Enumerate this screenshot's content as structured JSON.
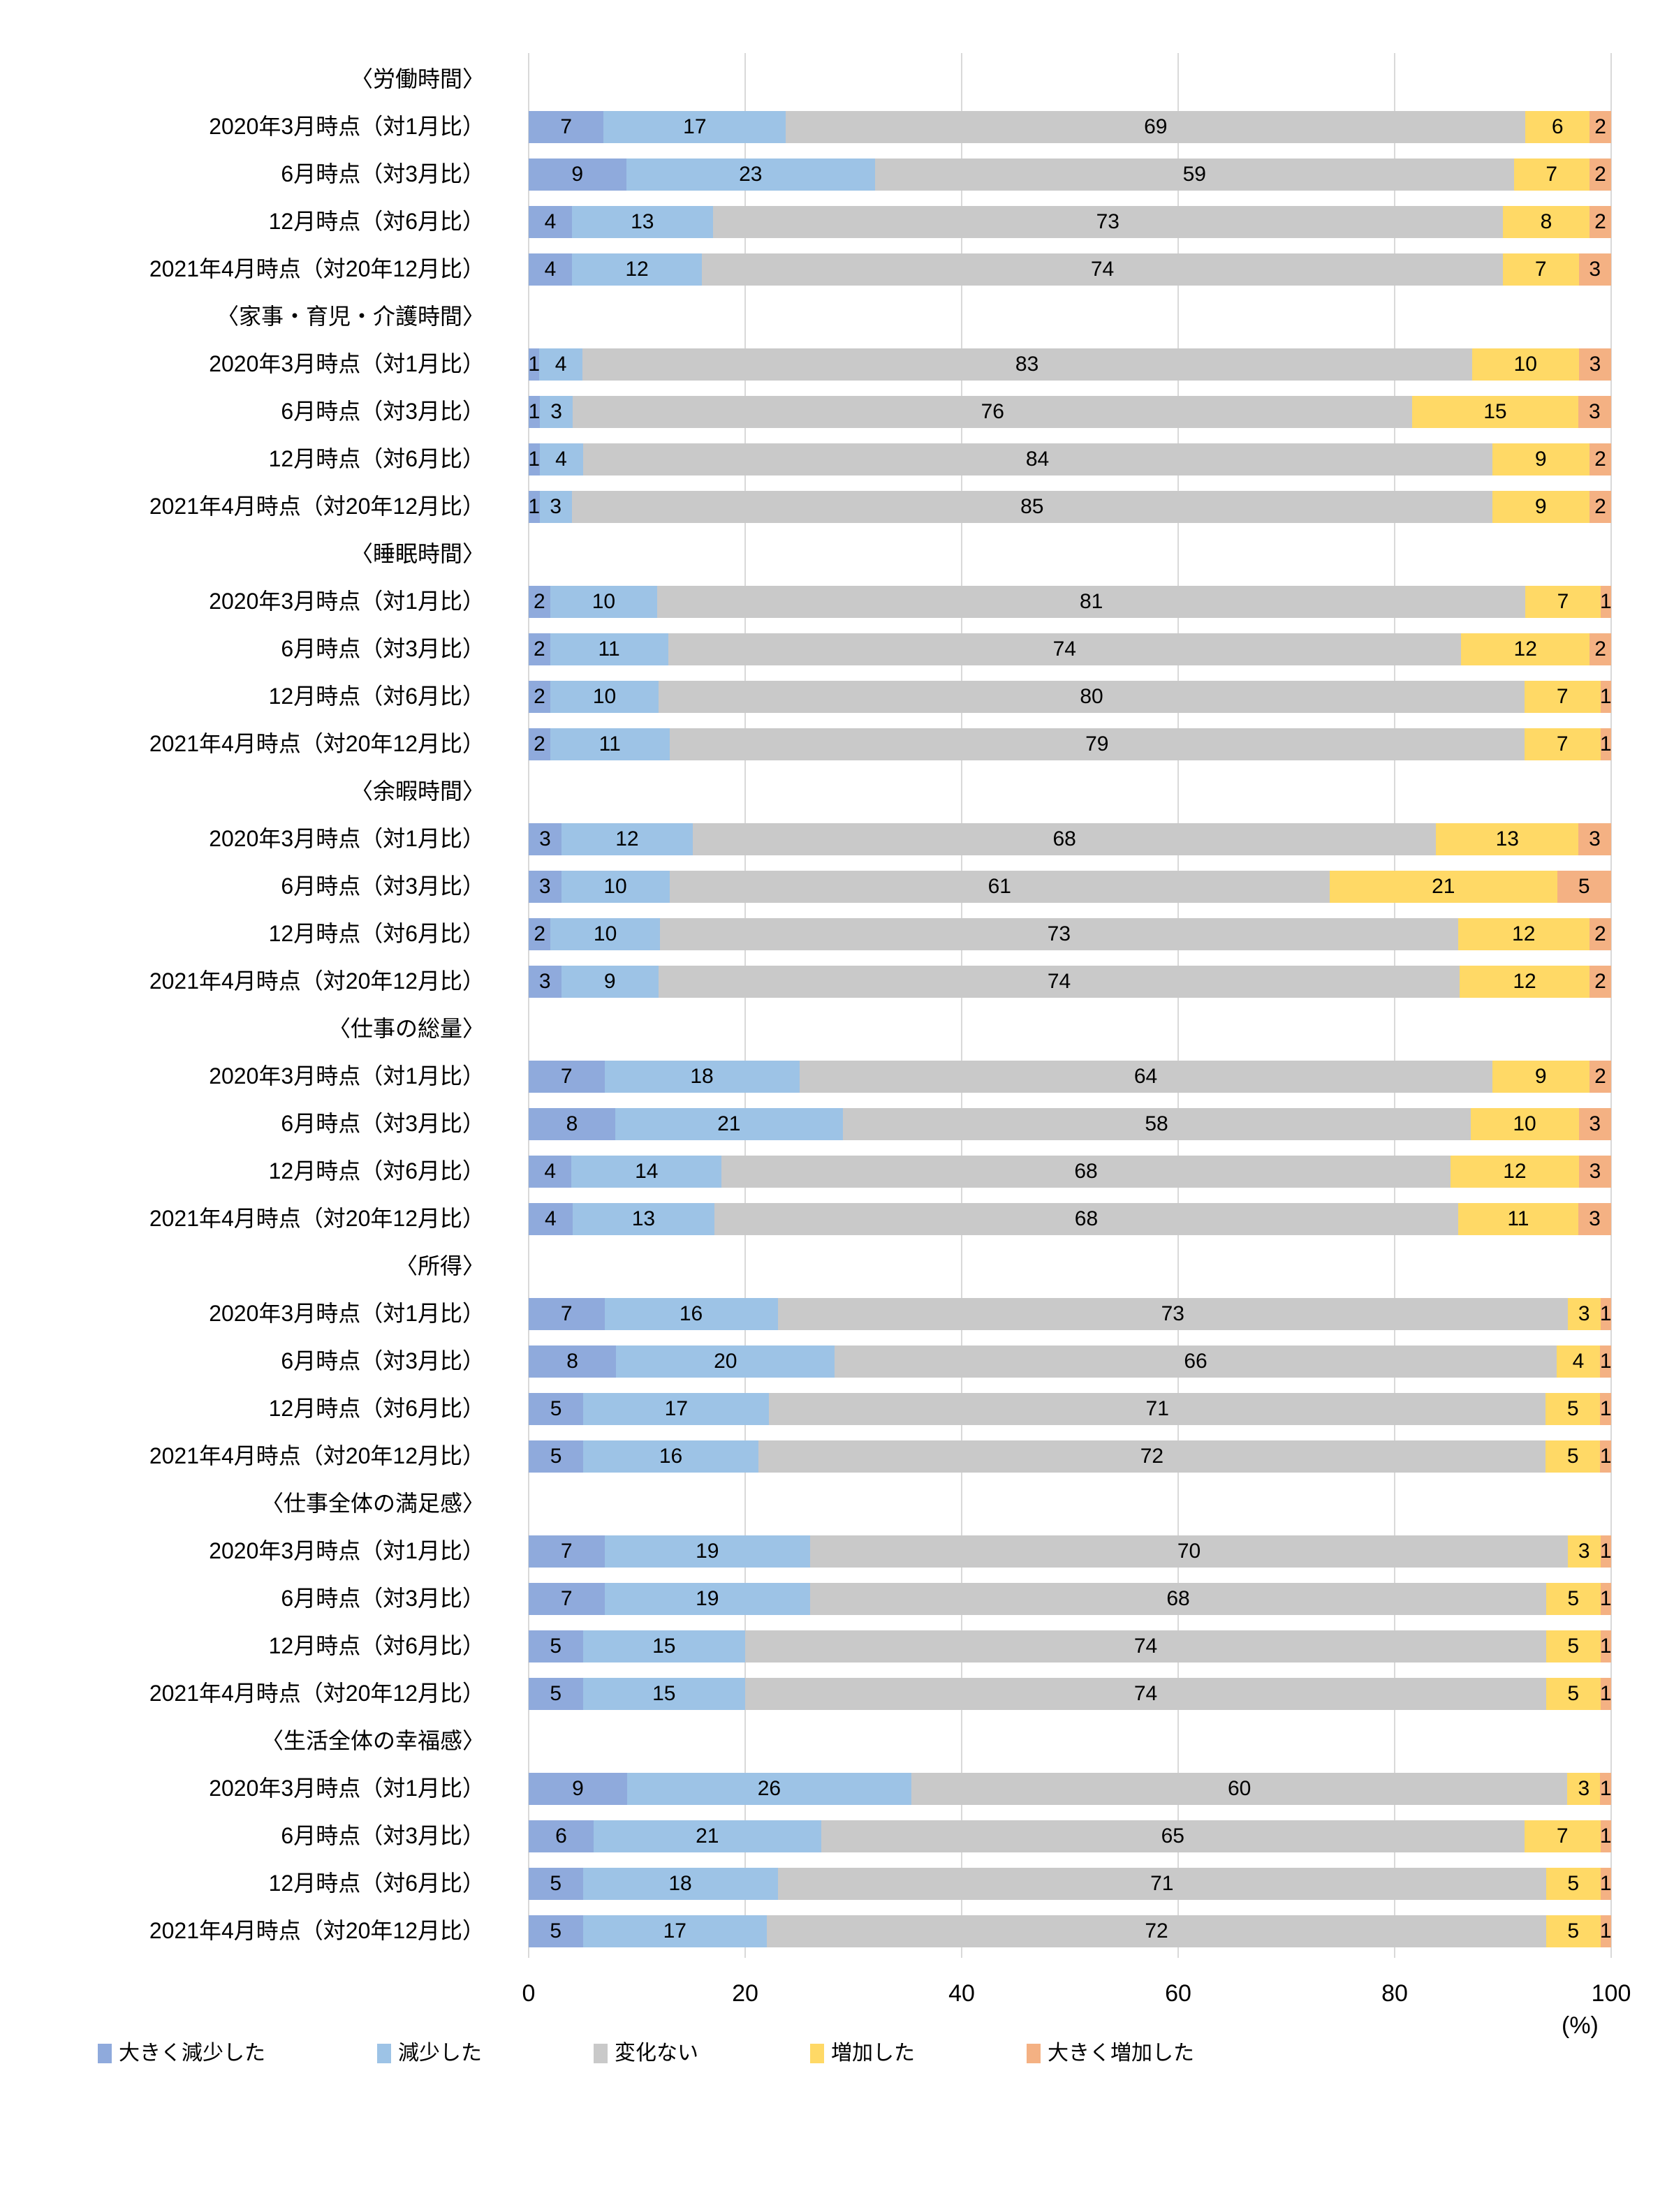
{
  "chart_data": {
    "type": "bar",
    "orientation": "horizontal",
    "stacked": true,
    "stacked_100_percent": true,
    "title": "",
    "unit": "(%)",
    "x_axis": {
      "min": 0,
      "max": 100,
      "ticks": [
        0,
        20,
        40,
        60,
        80,
        100
      ],
      "grid": true
    },
    "legend_position": "bottom",
    "legend": [
      {
        "label": "大きく減少した",
        "color": "#8FAADC"
      },
      {
        "label": "減少した",
        "color": "#9DC3E6"
      },
      {
        "label": "変化ない",
        "color": "#C9C9C9"
      },
      {
        "label": "増加した",
        "color": "#FFD966"
      },
      {
        "label": "大きく増加した",
        "color": "#F4B183"
      }
    ],
    "row_labels": [
      "2020年3月時点（対1月比）",
      "6月時点（対3月比）",
      "12月時点（対6月比）",
      "2021年4月時点（対20年12月比）"
    ],
    "groups": [
      {
        "title": "〈労働時間〉",
        "rows": [
          [
            7,
            17,
            69,
            6,
            2
          ],
          [
            9,
            23,
            59,
            7,
            2
          ],
          [
            4,
            13,
            73,
            8,
            2
          ],
          [
            4,
            12,
            74,
            7,
            3
          ]
        ]
      },
      {
        "title": "〈家事・育児・介護時間〉",
        "rows": [
          [
            1,
            4,
            83,
            10,
            3
          ],
          [
            1,
            3,
            76,
            15,
            3
          ],
          [
            1,
            4,
            84,
            9,
            2
          ],
          [
            1,
            3,
            85,
            9,
            2
          ]
        ]
      },
      {
        "title": "〈睡眠時間〉",
        "rows": [
          [
            2,
            10,
            81,
            7,
            1
          ],
          [
            2,
            11,
            74,
            12,
            2
          ],
          [
            2,
            10,
            80,
            7,
            1
          ],
          [
            2,
            11,
            79,
            7,
            1
          ]
        ]
      },
      {
        "title": "〈余暇時間〉",
        "rows": [
          [
            3,
            12,
            68,
            13,
            3
          ],
          [
            3,
            10,
            61,
            21,
            5
          ],
          [
            2,
            10,
            73,
            12,
            2
          ],
          [
            3,
            9,
            74,
            12,
            2
          ]
        ]
      },
      {
        "title": "〈仕事の総量〉",
        "rows": [
          [
            7,
            18,
            64,
            9,
            2
          ],
          [
            8,
            21,
            58,
            10,
            3
          ],
          [
            4,
            14,
            68,
            12,
            3
          ],
          [
            4,
            13,
            68,
            11,
            3
          ]
        ]
      },
      {
        "title": "〈所得〉",
        "rows": [
          [
            7,
            16,
            73,
            3,
            1
          ],
          [
            8,
            20,
            66,
            4,
            1
          ],
          [
            5,
            17,
            71,
            5,
            1
          ],
          [
            5,
            16,
            72,
            5,
            1
          ]
        ]
      },
      {
        "title": "〈仕事全体の満足感〉",
        "rows": [
          [
            7,
            19,
            70,
            3,
            1
          ],
          [
            7,
            19,
            68,
            5,
            1
          ],
          [
            5,
            15,
            74,
            5,
            1
          ],
          [
            5,
            15,
            74,
            5,
            1
          ]
        ]
      },
      {
        "title": "〈生活全体の幸福感〉",
        "rows": [
          [
            9,
            26,
            60,
            3,
            1
          ],
          [
            6,
            21,
            65,
            7,
            1
          ],
          [
            5,
            18,
            71,
            5,
            1
          ],
          [
            5,
            17,
            72,
            5,
            1
          ]
        ]
      }
    ]
  }
}
